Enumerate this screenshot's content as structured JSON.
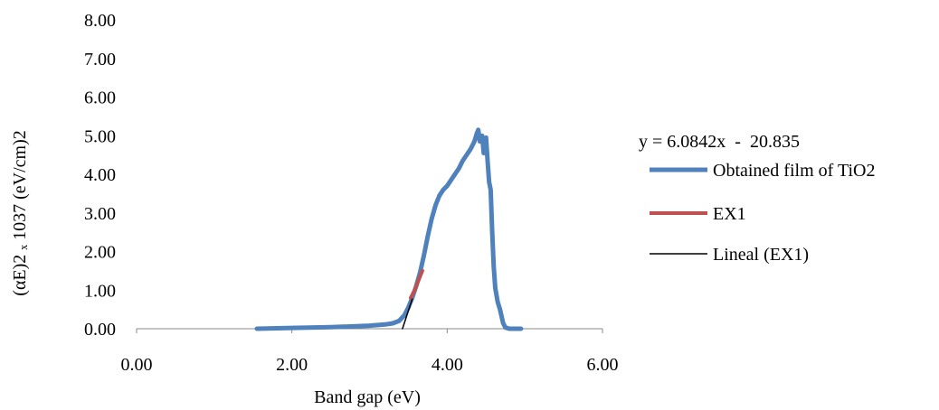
{
  "chart_data": {
    "type": "line",
    "xlabel": "Band gap (eV)",
    "ylabel": "(αE)2 ₓ 1037 (eV/cm)2",
    "xlim": [
      0,
      6
    ],
    "ylim": [
      0,
      8
    ],
    "xticks": [
      0,
      2,
      4,
      6
    ],
    "yticks": [
      0,
      1,
      2,
      3,
      4,
      5,
      6,
      7,
      8
    ],
    "tick_format": "0.00",
    "grid": false,
    "legend_position": "right",
    "equation": "y = 6.0842x  -  20.835",
    "series": [
      {
        "name": "Obtained film of TiO2",
        "color": "#4F81BD",
        "points": [
          [
            1.55,
            0.0
          ],
          [
            2.0,
            0.02
          ],
          [
            2.5,
            0.04
          ],
          [
            3.0,
            0.08
          ],
          [
            3.2,
            0.11
          ],
          [
            3.3,
            0.14
          ],
          [
            3.38,
            0.2
          ],
          [
            3.45,
            0.35
          ],
          [
            3.5,
            0.55
          ],
          [
            3.55,
            0.8
          ],
          [
            3.6,
            1.1
          ],
          [
            3.65,
            1.45
          ],
          [
            3.7,
            1.9
          ],
          [
            3.75,
            2.4
          ],
          [
            3.8,
            2.85
          ],
          [
            3.85,
            3.2
          ],
          [
            3.9,
            3.45
          ],
          [
            3.95,
            3.6
          ],
          [
            4.0,
            3.7
          ],
          [
            4.05,
            3.85
          ],
          [
            4.1,
            4.0
          ],
          [
            4.15,
            4.15
          ],
          [
            4.2,
            4.35
          ],
          [
            4.25,
            4.5
          ],
          [
            4.3,
            4.65
          ],
          [
            4.35,
            4.85
          ],
          [
            4.38,
            5.05
          ],
          [
            4.4,
            5.15
          ],
          [
            4.42,
            4.85
          ],
          [
            4.45,
            5.0
          ],
          [
            4.47,
            4.55
          ],
          [
            4.5,
            4.95
          ],
          [
            4.52,
            4.35
          ],
          [
            4.54,
            3.8
          ],
          [
            4.56,
            3.6
          ],
          [
            4.58,
            2.5
          ],
          [
            4.6,
            1.6
          ],
          [
            4.62,
            1.05
          ],
          [
            4.65,
            0.7
          ],
          [
            4.68,
            0.5
          ],
          [
            4.72,
            0.15
          ],
          [
            4.75,
            0.03
          ],
          [
            4.8,
            0.0
          ],
          [
            4.95,
            0.0
          ]
        ]
      },
      {
        "name": "EX1",
        "color": "#C0504D",
        "points": [
          [
            3.53,
            0.8
          ],
          [
            3.58,
            1.0
          ],
          [
            3.63,
            1.25
          ],
          [
            3.68,
            1.5
          ]
        ]
      },
      {
        "name": "Lineal (EX1)",
        "color": "#000000",
        "points": [
          [
            3.424,
            0.0
          ],
          [
            3.55,
            0.77
          ]
        ]
      }
    ]
  }
}
